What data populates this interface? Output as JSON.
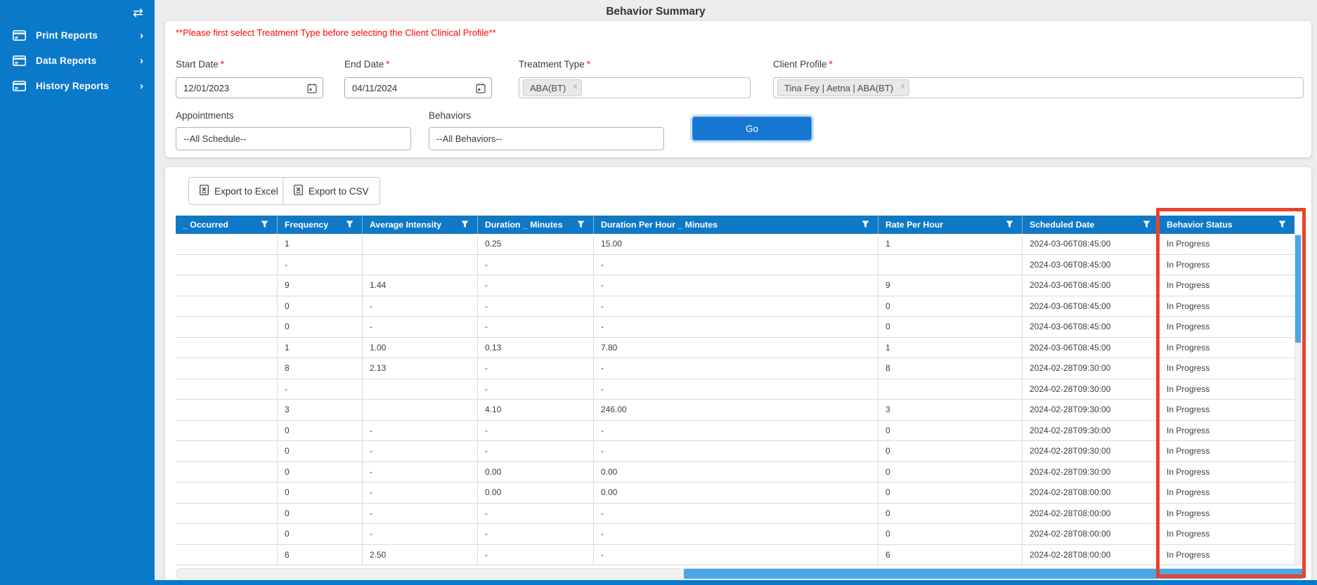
{
  "title": "Behavior Summary",
  "sidebar": {
    "toggle_icon": "swap-horizontal-arrows",
    "items": [
      {
        "label": "Print Reports",
        "icon": "report-card"
      },
      {
        "label": "Data Reports",
        "icon": "report-card"
      },
      {
        "label": "History Reports",
        "icon": "report-card"
      }
    ]
  },
  "warning": "**Please first select Treatment Type before selecting the Client Clinical Profile**",
  "filters": {
    "start_date": {
      "label": "Start Date",
      "required": "*",
      "value": "12/01/2023",
      "icon": "calendar"
    },
    "end_date": {
      "label": "End Date",
      "required": "*",
      "value": "04/11/2024",
      "icon": "calendar"
    },
    "treatment_type": {
      "label": "Treatment Type",
      "required": "*",
      "tag": "ABA(BT)",
      "tag_remove": "x"
    },
    "client_profile": {
      "label": "Client Profile",
      "required": "*",
      "tag": "Tina Fey | Aetna | ABA(BT)",
      "tag_remove": "x"
    },
    "appointments": {
      "label": "Appointments",
      "value": "--All Schedule--"
    },
    "behaviors": {
      "label": "Behaviors",
      "value": "--All Behaviors--"
    },
    "go_label": "Go"
  },
  "toolbar": {
    "export_excel": "Export to Excel",
    "export_csv": "Export to CSV",
    "icon": "excel-file"
  },
  "table": {
    "columns": [
      "_ Occurred",
      "Frequency",
      "Average Intensity",
      "Duration _ Minutes",
      "Duration Per Hour _ Minutes",
      "Rate Per Hour",
      "Scheduled Date",
      "Behavior Status"
    ],
    "filter_icon": "funnel",
    "rows": [
      [
        "",
        "1",
        "",
        "0.25",
        "15.00",
        "1",
        "2024-03-06T08:45:00",
        "In Progress"
      ],
      [
        "",
        "-",
        "",
        "-",
        "-",
        "",
        "2024-03-06T08:45:00",
        "In Progress"
      ],
      [
        "",
        "9",
        "1.44",
        "-",
        "-",
        "9",
        "2024-03-06T08:45:00",
        "In Progress"
      ],
      [
        "",
        "0",
        "-",
        "-",
        "-",
        "0",
        "2024-03-06T08:45:00",
        "In Progress"
      ],
      [
        "",
        "0",
        "-",
        "-",
        "-",
        "0",
        "2024-03-06T08:45:00",
        "In Progress"
      ],
      [
        "",
        "1",
        "1.00",
        "0.13",
        "7.80",
        "1",
        "2024-03-06T08:45:00",
        "In Progress"
      ],
      [
        "",
        "8",
        "2.13",
        "-",
        "-",
        "8",
        "2024-02-28T09:30:00",
        "In Progress"
      ],
      [
        "",
        "-",
        "",
        "-",
        "-",
        "",
        "2024-02-28T09:30:00",
        "In Progress"
      ],
      [
        "",
        "3",
        "",
        "4.10",
        "246.00",
        "3",
        "2024-02-28T09:30:00",
        "In Progress"
      ],
      [
        "",
        "0",
        "-",
        "-",
        "-",
        "0",
        "2024-02-28T09:30:00",
        "In Progress"
      ],
      [
        "",
        "0",
        "-",
        "-",
        "-",
        "0",
        "2024-02-28T09:30:00",
        "In Progress"
      ],
      [
        "",
        "0",
        "-",
        "0.00",
        "0.00",
        "0",
        "2024-02-28T09:30:00",
        "In Progress"
      ],
      [
        "",
        "0",
        "-",
        "0.00",
        "0.00",
        "0",
        "2024-02-28T08:00:00",
        "In Progress"
      ],
      [
        "",
        "0",
        "-",
        "-",
        "-",
        "0",
        "2024-02-28T08:00:00",
        "In Progress"
      ],
      [
        "",
        "0",
        "-",
        "-",
        "-",
        "0",
        "2024-02-28T08:00:00",
        "In Progress"
      ],
      [
        "",
        "6",
        "2.50",
        "-",
        "-",
        "6",
        "2024-02-28T08:00:00",
        "In Progress"
      ]
    ]
  },
  "colors": {
    "sidebar_blue": "#0b79ca",
    "grid_header_blue": "#0f79c6",
    "go_button_blue": "#1577d2",
    "scrollbar_thumb_blue": "#4ba5e8",
    "highlight_red": "#e8432a",
    "warning_red": "#ff0404"
  }
}
